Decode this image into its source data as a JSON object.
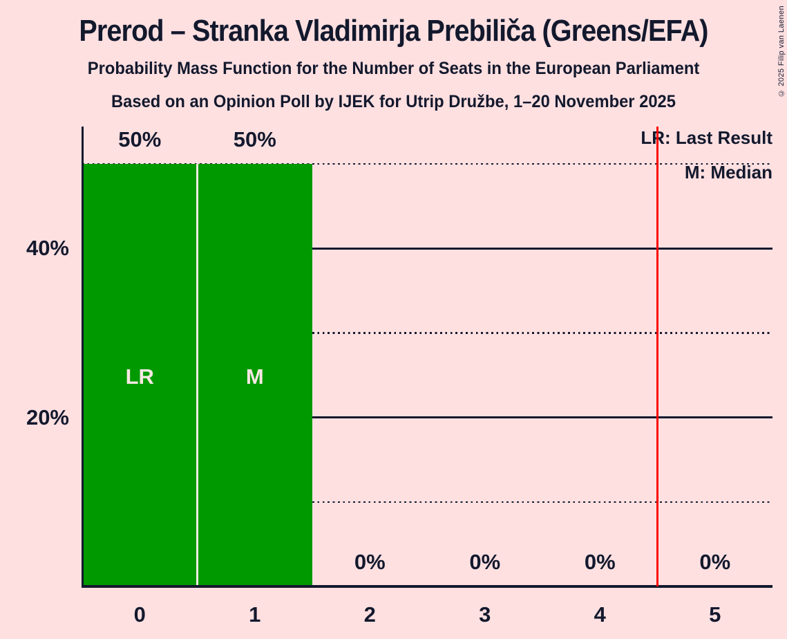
{
  "title": "Prerod – Stranka Vladimirja Prebiliča (Greens/EFA)",
  "subtitle": "Probability Mass Function for the Number of Seats in the European Parliament",
  "poll_line": "Based on an Opinion Poll by IJEK for Utrip Družbe, 1–20 November 2025",
  "copyright": "© 2025 Filip van Laenen",
  "legend": {
    "last_result": "LR: Last Result",
    "median": "M: Median"
  },
  "colors": {
    "background": "#FFE0E1",
    "text": "#13192D",
    "bar": "#009900",
    "red_line": "#FA0000",
    "divider": "#F1ECE0",
    "bar_label": "#F9E8E3"
  },
  "chart_data": {
    "type": "bar",
    "title": "Prerod – Stranka Vladimirja Prebiliča (Greens/EFA)",
    "subtitle": "Probability Mass Function for the Number of Seats in the European Parliament",
    "source": "Based on an Opinion Poll by IJEK for Utrip Družbe, 1–20 November 2025",
    "categories": [
      "0",
      "1",
      "2",
      "3",
      "4",
      "5"
    ],
    "values": [
      50,
      50,
      0,
      0,
      0,
      0
    ],
    "value_labels": [
      "50%",
      "50%",
      "0%",
      "0%",
      "0%",
      "0%"
    ],
    "annotations": [
      {
        "category_index": 0,
        "label": "LR"
      },
      {
        "category_index": 1,
        "label": "M"
      }
    ],
    "xlabel": "",
    "ylabel": "",
    "unit": "%",
    "ylim": [
      0,
      54.4
    ],
    "y_ticks": [
      {
        "value": 40,
        "label": "40%"
      },
      {
        "value": 20,
        "label": "20%"
      }
    ],
    "gridlines": {
      "solid_at": [
        40,
        20
      ],
      "dotted_at": [
        50,
        30,
        10
      ]
    },
    "red_vertical_line_at": 4.5,
    "legend_position": "top-right",
    "bar_color": "#009900"
  }
}
